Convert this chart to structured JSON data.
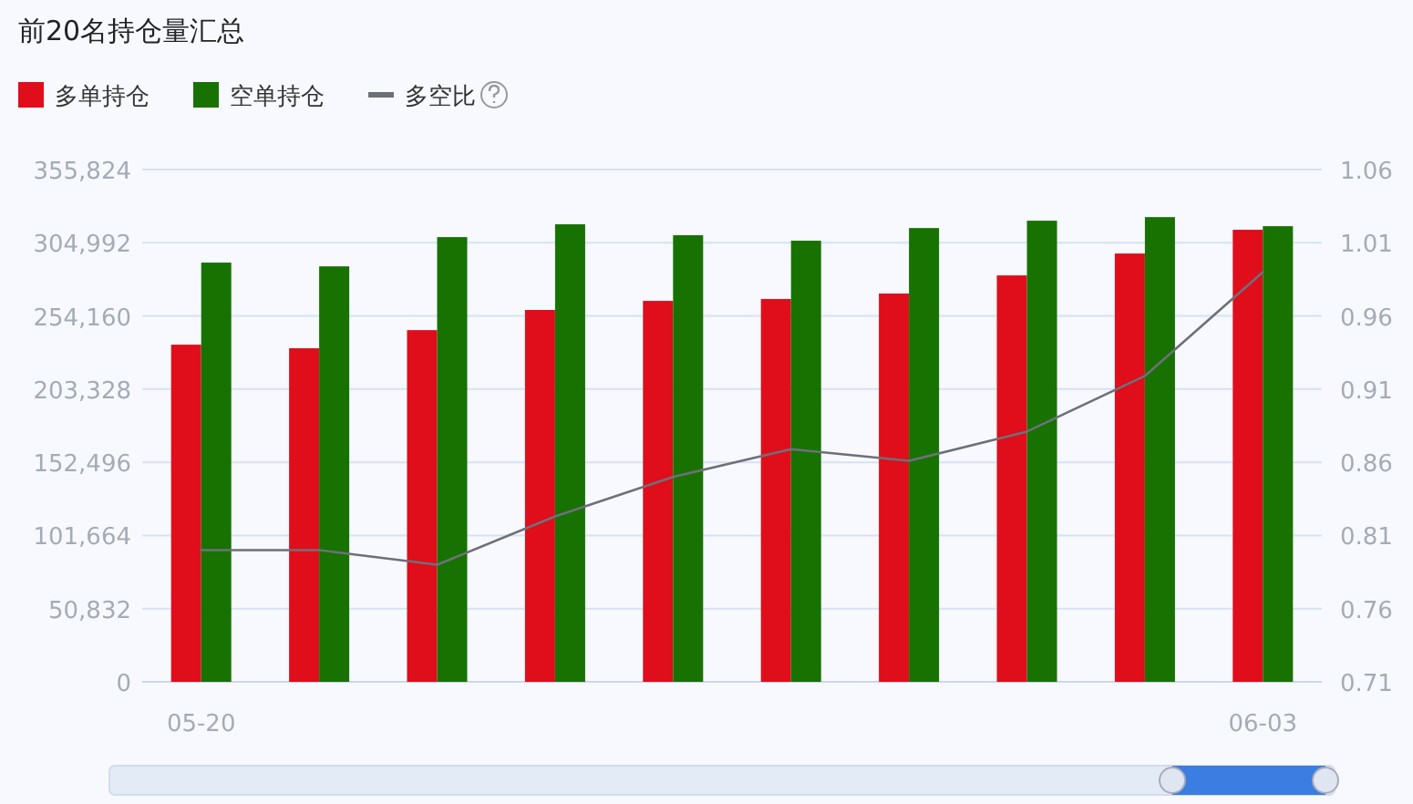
{
  "chart_data": {
    "type": "bar",
    "title": "前20名持仓量汇总",
    "categories": [
      "05-20",
      null,
      null,
      null,
      null,
      null,
      null,
      null,
      null,
      "06-03"
    ],
    "series": [
      {
        "name": "多单持仓",
        "color": "#e00d1b",
        "values": [
          234200,
          231700,
          244300,
          258300,
          264600,
          265900,
          269700,
          282300,
          297500,
          314000
        ]
      },
      {
        "name": "空单持仓",
        "color": "#177202",
        "values": [
          291200,
          288600,
          308900,
          317800,
          310200,
          306400,
          315200,
          320300,
          322800,
          316500
        ]
      },
      {
        "name": "多空比",
        "type": "line",
        "axis": "y2",
        "color": "#6e7079",
        "values": [
          0.8,
          0.8,
          0.79,
          0.823,
          0.85,
          0.869,
          0.861,
          0.881,
          0.919,
          0.99
        ]
      }
    ],
    "ylim": [
      0,
      355824
    ],
    "yticks": [
      {
        "value": 0,
        "label": "0"
      },
      {
        "value": 50832,
        "label": "50,832"
      },
      {
        "value": 101664,
        "label": "101,664"
      },
      {
        "value": 152496,
        "label": "152,496"
      },
      {
        "value": 203328,
        "label": "203,328"
      },
      {
        "value": 254160,
        "label": "254,160"
      },
      {
        "value": 304992,
        "label": "304,992"
      },
      {
        "value": 355824,
        "label": "355,824"
      }
    ],
    "y2lim": [
      0.71,
      1.06
    ],
    "y2ticks": [
      0.71,
      0.76,
      0.81,
      0.86,
      0.91,
      0.96,
      1.01,
      1.06
    ],
    "grid": "y",
    "legend": "top left",
    "marker": "none"
  }
}
